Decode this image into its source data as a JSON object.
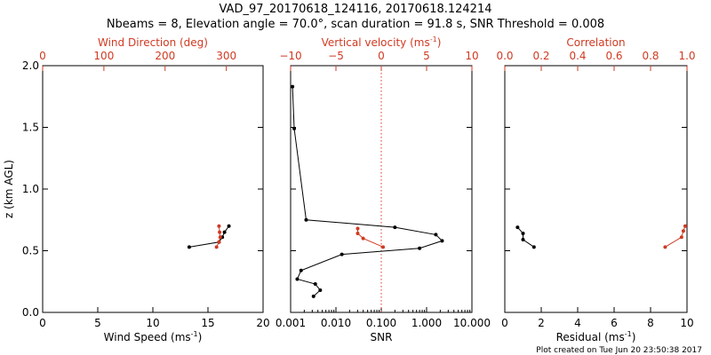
{
  "header": {
    "title_line1": "VAD_97_20170618_124116, 20170618.124214",
    "title_line2": "Nbeams = 8, Elevation angle = 70.0°, scan duration = 91.8 s, SNR Threshold = 0.008"
  },
  "footer": {
    "credit": "Plot created on Tue Jun 20 23:50:38 2017"
  },
  "colors": {
    "primary": "#000000",
    "secondary": "#d03a22"
  },
  "chart_data": [
    {
      "type": "line",
      "panel": "wind",
      "ylabel": "z (km AGL)",
      "ylim": [
        0,
        2
      ],
      "yticks": [
        "0.0",
        "0.5",
        "1.0",
        "1.5",
        "2.0"
      ],
      "bottom_axis": {
        "label": "Wind Speed (ms",
        "label_sup": "-1",
        "label_end": ")",
        "lim": [
          0,
          20
        ],
        "ticks": [
          "0",
          "5",
          "10",
          "15",
          "20"
        ],
        "tick_values": [
          0,
          5,
          10,
          15,
          20
        ]
      },
      "top_axis": {
        "label": "Wind Direction (deg)",
        "lim": [
          0,
          360
        ],
        "ticks": [
          "0",
          "100",
          "200",
          "300"
        ],
        "tick_values": [
          0,
          100,
          200,
          300
        ]
      },
      "series": [
        {
          "name": "Wind Speed",
          "axis": "bottom",
          "color": "#000000",
          "x": [
            13.3,
            16.0,
            16.3,
            16.5,
            16.9
          ],
          "z": [
            0.53,
            0.57,
            0.61,
            0.65,
            0.7
          ]
        },
        {
          "name": "Wind Direction",
          "axis": "top",
          "color": "#d03a22",
          "x": [
            284,
            288,
            290,
            289,
            288
          ],
          "z": [
            0.53,
            0.57,
            0.61,
            0.65,
            0.7
          ]
        }
      ]
    },
    {
      "type": "line",
      "panel": "snr",
      "bottom_axis": {
        "label": "SNR",
        "scale": "log",
        "lim": [
          0.001,
          10
        ],
        "ticks": [
          "0.001",
          "0.010",
          "0.100",
          "1.000",
          "10.000"
        ],
        "tick_values": [
          0.001,
          0.01,
          0.1,
          1,
          10
        ]
      },
      "top_axis": {
        "label": "Vertical velocity (ms",
        "label_sup": "-1",
        "label_end": ")",
        "lim": [
          -10,
          10
        ],
        "ticks": [
          "−10",
          "−5",
          "0",
          "5",
          "10"
        ],
        "tick_values": [
          -10,
          -5,
          0,
          5,
          10
        ]
      },
      "reference_line": {
        "axis": "top",
        "value": 0,
        "style": "dotted",
        "color": "#d03a22"
      },
      "series": [
        {
          "name": "SNR",
          "axis": "bottom",
          "color": "#000000",
          "x": [
            0.0011,
            0.0012,
            0.0022,
            0.2,
            1.6,
            2.2,
            0.7,
            0.0135,
            0.0017,
            0.0014,
            0.0035,
            0.0045,
            0.0032
          ],
          "z": [
            1.83,
            1.49,
            0.75,
            0.69,
            0.63,
            0.58,
            0.52,
            0.47,
            0.34,
            0.27,
            0.23,
            0.18,
            0.13
          ]
        },
        {
          "name": "Vertical velocity",
          "axis": "top",
          "color": "#d03a22",
          "x": [
            -2.6,
            -2.6,
            -2.0,
            0.2
          ],
          "z": [
            0.68,
            0.64,
            0.6,
            0.53
          ]
        }
      ]
    },
    {
      "type": "line",
      "panel": "residual",
      "bottom_axis": {
        "label": "Residual (ms",
        "label_sup": "-1",
        "label_end": ")",
        "lim": [
          0,
          10
        ],
        "ticks": [
          "0",
          "2",
          "4",
          "6",
          "8",
          "10"
        ],
        "tick_values": [
          0,
          2,
          4,
          6,
          8,
          10
        ]
      },
      "top_axis": {
        "label": "Correlation",
        "lim": [
          0,
          1
        ],
        "ticks": [
          "0.0",
          "0.2",
          "0.4",
          "0.6",
          "0.8",
          "1.0"
        ],
        "tick_values": [
          0,
          0.2,
          0.4,
          0.6,
          0.8,
          1.0
        ]
      },
      "series": [
        {
          "name": "Residual",
          "axis": "bottom",
          "color": "#000000",
          "x": [
            0.7,
            1.0,
            1.0,
            1.6
          ],
          "z": [
            0.69,
            0.64,
            0.59,
            0.53
          ]
        },
        {
          "name": "Correlation",
          "axis": "top",
          "color": "#d03a22",
          "x": [
            0.99,
            0.98,
            0.97,
            0.88
          ],
          "z": [
            0.7,
            0.66,
            0.61,
            0.53
          ]
        }
      ]
    }
  ]
}
